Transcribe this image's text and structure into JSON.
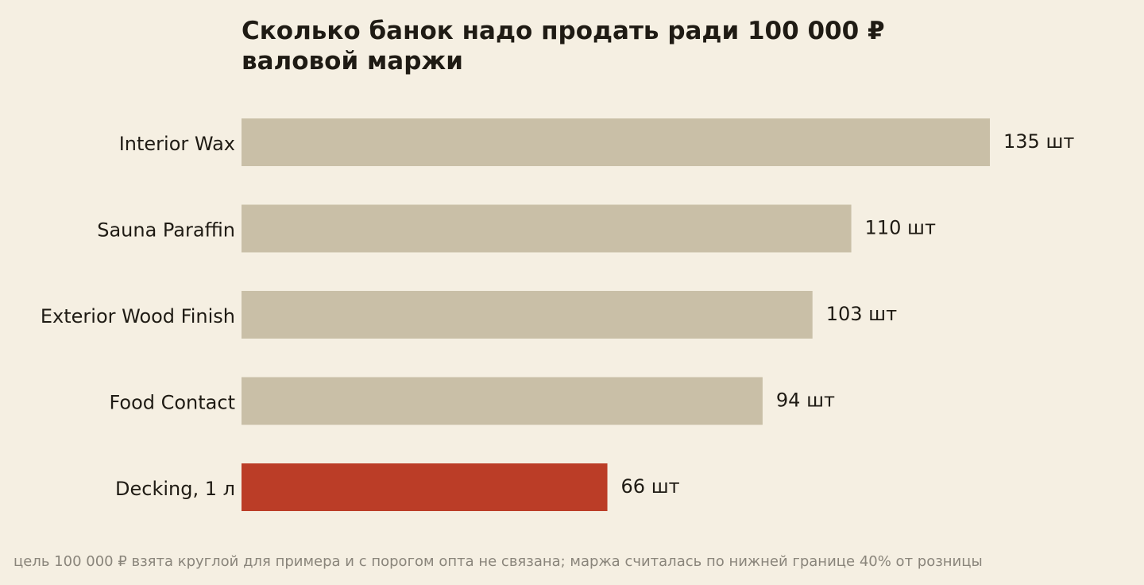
{
  "chart_data": {
    "type": "bar",
    "orientation": "horizontal",
    "title": "Сколько банок надо продать ради 100 000 ₽ валовой маржи",
    "categories": [
      "Interior Wax",
      "Sauna Paraffin",
      "Exterior Wood Finish",
      "Food Contact",
      "Decking, 1 л"
    ],
    "values": [
      135,
      110,
      103,
      94,
      66
    ],
    "value_labels": [
      "135 шт",
      "110 шт",
      "103 шт",
      "94 шт",
      "66 шт"
    ],
    "highlight_category": "Decking, 1 л",
    "xlim": [
      0,
      135
    ],
    "grid": false,
    "axes_visible": false,
    "colors": {
      "default": "#c9bfa7",
      "highlight": "#bb3d27",
      "background": "#f5efe2",
      "text": "#1f1b14",
      "footnote": "#8a857b"
    }
  },
  "footnote": "цель 100 000 ₽ взята круглой для примера и с порогом опта не связана; маржа считалась по нижней границе 40% от розницы"
}
